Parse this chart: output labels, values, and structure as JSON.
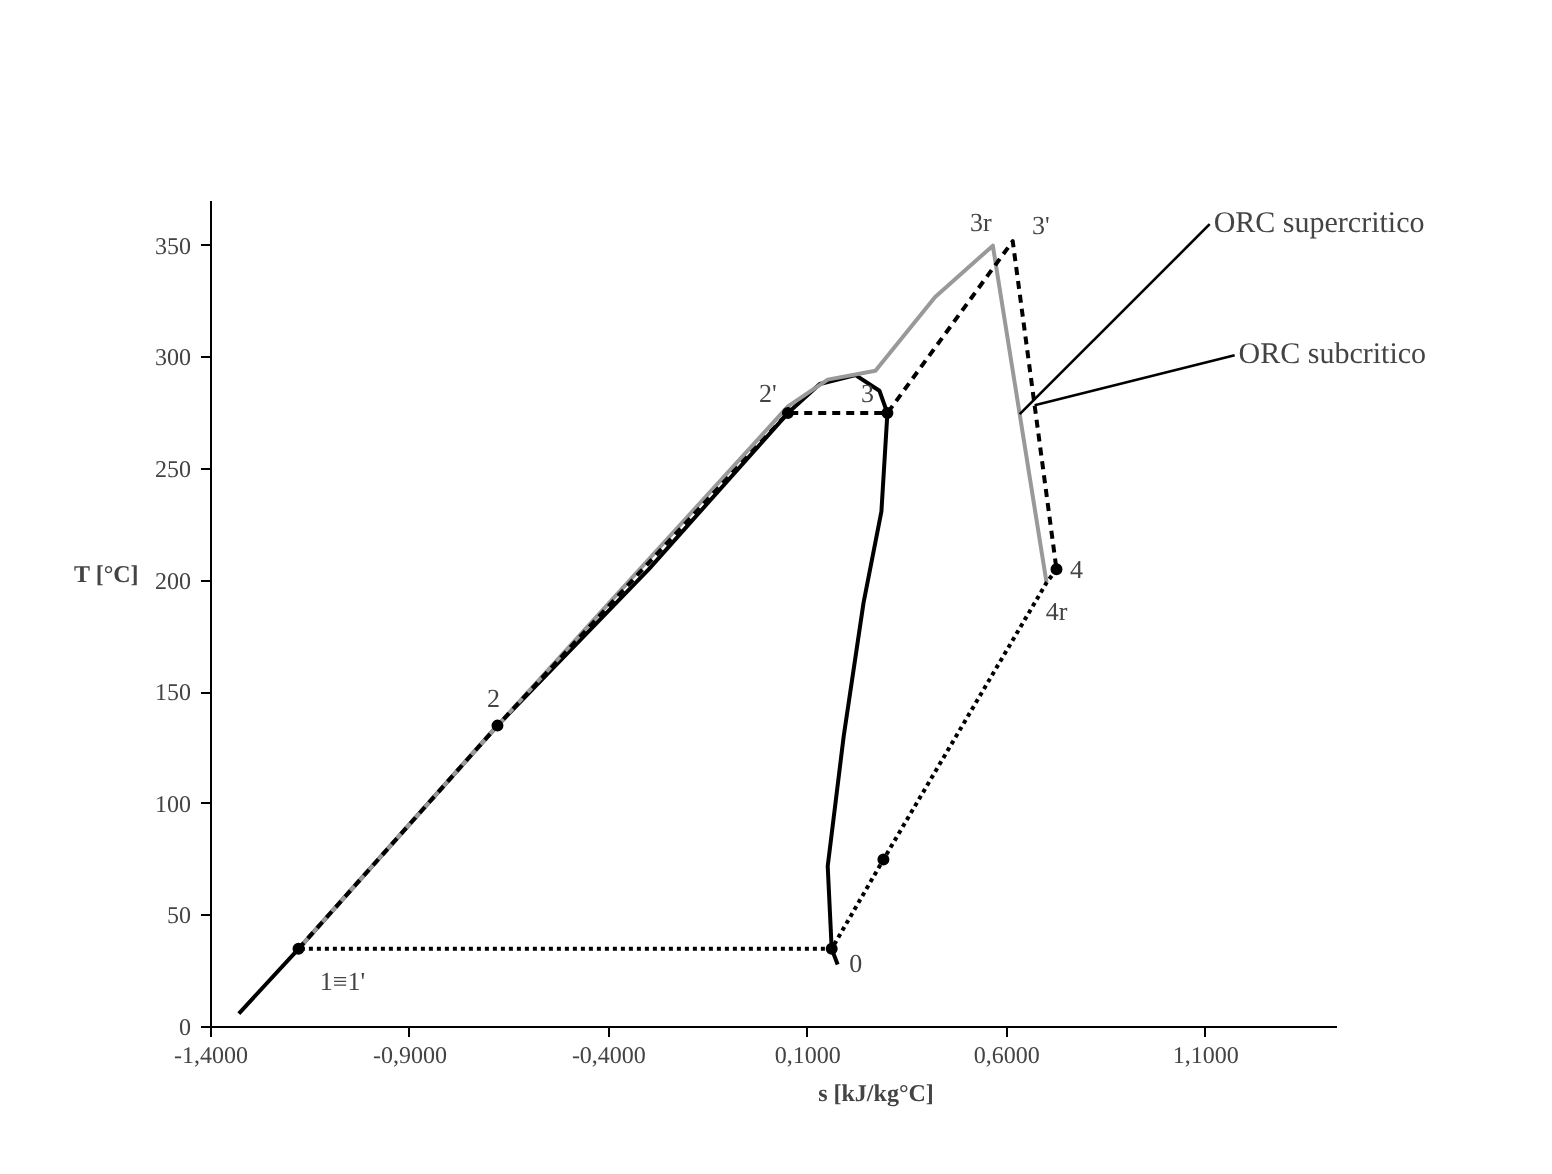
{
  "chart_data": {
    "type": "line",
    "xlabel": "s [kJ/kg°C]",
    "ylabel": "T [°C]",
    "xlim": [
      -1.4,
      1.43
    ],
    "ylim": [
      0,
      370
    ],
    "xticks": [
      {
        "value": -1.4,
        "label": "-1,4000"
      },
      {
        "value": -0.9,
        "label": "-0,9000"
      },
      {
        "value": -0.4,
        "label": "-0,4000"
      },
      {
        "value": 0.1,
        "label": "0,1000"
      },
      {
        "value": 0.6,
        "label": "0,6000"
      },
      {
        "value": 1.1,
        "label": "1,1000"
      }
    ],
    "yticks": [
      0,
      50,
      100,
      150,
      200,
      250,
      300,
      350
    ],
    "grid": false,
    "series": [
      {
        "color": "#000000",
        "line_style": "solid",
        "x": [
          -1.33,
          -1.18,
          -0.68,
          -0.3,
          0.05,
          0.13,
          0.22,
          0.28,
          0.3,
          0.285,
          0.24,
          0.19,
          0.15,
          0.16,
          0.175
        ],
        "values": [
          6,
          35,
          135,
          205,
          275,
          288,
          292,
          285,
          275,
          231,
          190,
          130,
          72,
          35,
          28
        ]
      },
      {
        "name": "ORC supercritico",
        "color": "#999999",
        "line_style": "solid",
        "x": [
          -1.18,
          -0.68,
          0.05,
          0.15,
          0.27,
          0.42,
          0.565,
          0.7
        ],
        "values": [
          35,
          135,
          278,
          290,
          294,
          327,
          350,
          199
        ]
      },
      {
        "name": "ORC subcritico",
        "color": "#000000",
        "line_style": "dashed",
        "x": [
          -1.18,
          -0.68,
          0.05,
          0.3,
          0.615,
          0.725
        ],
        "values": [
          35,
          135,
          275,
          275,
          352,
          205
        ]
      },
      {
        "color": "#000000",
        "line_style": "dotted",
        "x": [
          0.725,
          0.7,
          0.29,
          0.16,
          -1.18
        ],
        "values": [
          205,
          199,
          75,
          35,
          35
        ]
      },
      {
        "type": "scatter",
        "marker": "circle",
        "color": "#000000",
        "x": [
          -1.18,
          -0.68,
          0.05,
          0.3,
          0.725,
          0.29,
          0.16
        ],
        "values": [
          35,
          135,
          275,
          275,
          205,
          75,
          35
        ]
      }
    ],
    "annotations": [
      {
        "text": "1≡1'",
        "x": -1.18,
        "y": 35
      },
      {
        "text": "2",
        "x": -0.68,
        "y": 135
      },
      {
        "text": "2'",
        "x": 0.05,
        "y": 275
      },
      {
        "text": "3",
        "x": 0.3,
        "y": 275
      },
      {
        "text": "3r",
        "x": 0.565,
        "y": 350
      },
      {
        "text": "3'",
        "x": 0.615,
        "y": 352
      },
      {
        "text": "4",
        "x": 0.725,
        "y": 205
      },
      {
        "text": "4r",
        "x": 0.7,
        "y": 199
      },
      {
        "text": "0",
        "x": 0.16,
        "y": 35
      }
    ]
  }
}
